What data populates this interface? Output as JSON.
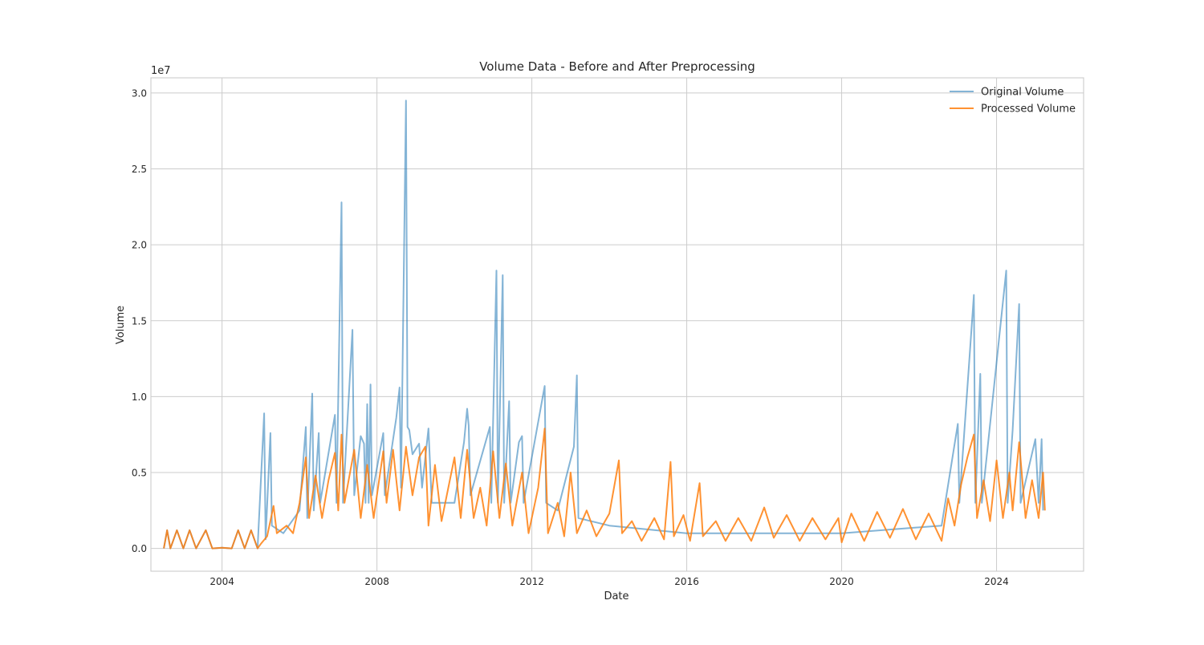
{
  "chart_data": {
    "type": "line",
    "title": "Volume Data - Before and After Preprocessing",
    "xlabel": "Date",
    "ylabel": "Volume",
    "y_multiplier_label": "1e7",
    "x_domain": [
      "2002-03-01",
      "2026-04-01"
    ],
    "ylim": [
      -1500000,
      31000000
    ],
    "x_ticks": [
      "2004",
      "2008",
      "2012",
      "2016",
      "2020",
      "2024"
    ],
    "y_ticks": [
      "0.0",
      "0.5",
      "1.0",
      "1.5",
      "2.0",
      "2.5",
      "3.0"
    ],
    "grid": true,
    "legend_position": "top-right",
    "colors": {
      "original": "#1f77b4",
      "processed": "#ff7f0e",
      "grid": "#cccccc",
      "spine": "#cccccc",
      "text": "#262626"
    },
    "series": [
      {
        "name": "Original Volume",
        "key": "original",
        "points": [
          [
            "2002-07-01",
            0
          ],
          [
            "2002-08-01",
            1200000
          ],
          [
            "2002-09-01",
            0
          ],
          [
            "2002-11-01",
            1200000
          ],
          [
            "2003-01-01",
            0
          ],
          [
            "2003-03-01",
            1200000
          ],
          [
            "2003-05-01",
            0
          ],
          [
            "2003-08-01",
            1200000
          ],
          [
            "2003-10-01",
            0
          ],
          [
            "2004-01-01",
            50000
          ],
          [
            "2004-04-01",
            0
          ],
          [
            "2004-06-01",
            1200000
          ],
          [
            "2004-08-01",
            0
          ],
          [
            "2004-10-01",
            1200000
          ],
          [
            "2004-12-01",
            0
          ],
          [
            "2005-02-01",
            8900000
          ],
          [
            "2005-02-15",
            600000
          ],
          [
            "2005-04-01",
            7600000
          ],
          [
            "2005-04-15",
            1500000
          ],
          [
            "2005-08-01",
            1000000
          ],
          [
            "2006-01-01",
            2500000
          ],
          [
            "2006-03-01",
            8000000
          ],
          [
            "2006-03-15",
            2000000
          ],
          [
            "2006-05-01",
            10200000
          ],
          [
            "2006-05-15",
            2500000
          ],
          [
            "2006-07-01",
            7600000
          ],
          [
            "2006-07-15",
            3000000
          ],
          [
            "2006-12-01",
            8800000
          ],
          [
            "2006-12-15",
            3000000
          ],
          [
            "2007-02-01",
            22800000
          ],
          [
            "2007-02-15",
            3000000
          ],
          [
            "2007-05-15",
            14400000
          ],
          [
            "2007-06-01",
            3500000
          ],
          [
            "2007-08-01",
            7400000
          ],
          [
            "2007-09-01",
            6900000
          ],
          [
            "2007-09-15",
            3000000
          ],
          [
            "2007-10-01",
            9500000
          ],
          [
            "2007-10-15",
            3000000
          ],
          [
            "2007-11-01",
            10800000
          ],
          [
            "2007-11-15",
            3500000
          ],
          [
            "2008-03-01",
            7600000
          ],
          [
            "2008-03-15",
            3500000
          ],
          [
            "2008-07-01",
            8600000
          ],
          [
            "2008-08-01",
            10600000
          ],
          [
            "2008-08-15",
            4000000
          ],
          [
            "2008-10-01",
            29500000
          ],
          [
            "2008-10-15",
            8000000
          ],
          [
            "2008-11-01",
            7800000
          ],
          [
            "2008-12-01",
            6200000
          ],
          [
            "2009-02-01",
            6900000
          ],
          [
            "2009-03-01",
            4000000
          ],
          [
            "2009-05-01",
            7900000
          ],
          [
            "2009-06-01",
            3000000
          ],
          [
            "2010-01-01",
            3000000
          ],
          [
            "2010-04-01",
            7000000
          ],
          [
            "2010-05-01",
            9200000
          ],
          [
            "2010-05-15",
            8100000
          ],
          [
            "2010-06-01",
            3500000
          ],
          [
            "2010-12-01",
            8000000
          ],
          [
            "2010-12-15",
            3000000
          ],
          [
            "2011-02-01",
            18300000
          ],
          [
            "2011-02-15",
            3000000
          ],
          [
            "2011-04-01",
            18000000
          ],
          [
            "2011-04-15",
            3000000
          ],
          [
            "2011-06-01",
            9700000
          ],
          [
            "2011-06-15",
            3000000
          ],
          [
            "2011-09-01",
            7000000
          ],
          [
            "2011-10-01",
            7400000
          ],
          [
            "2011-10-15",
            3000000
          ],
          [
            "2012-05-01",
            10700000
          ],
          [
            "2012-05-15",
            3000000
          ],
          [
            "2012-09-01",
            2500000
          ],
          [
            "2013-02-01",
            6700000
          ],
          [
            "2013-03-01",
            11400000
          ],
          [
            "2013-03-15",
            2000000
          ],
          [
            "2014-01-01",
            1500000
          ],
          [
            "2016-01-01",
            1000000
          ],
          [
            "2020-01-01",
            1000000
          ],
          [
            "2022-08-01",
            1500000
          ],
          [
            "2023-01-01",
            8200000
          ],
          [
            "2023-01-15",
            3000000
          ],
          [
            "2023-06-01",
            16700000
          ],
          [
            "2023-06-15",
            3000000
          ],
          [
            "2023-08-01",
            11500000
          ],
          [
            "2023-08-15",
            3000000
          ],
          [
            "2024-04-01",
            18300000
          ],
          [
            "2024-04-15",
            3000000
          ],
          [
            "2024-06-01",
            7800000
          ],
          [
            "2024-08-01",
            16100000
          ],
          [
            "2024-08-15",
            3000000
          ],
          [
            "2025-01-01",
            7200000
          ],
          [
            "2025-02-01",
            3000000
          ],
          [
            "2025-03-01",
            7200000
          ],
          [
            "2025-03-15",
            2500000
          ]
        ]
      },
      {
        "name": "Processed Volume",
        "key": "processed",
        "points": [
          [
            "2002-07-01",
            0
          ],
          [
            "2002-08-01",
            1200000
          ],
          [
            "2002-09-01",
            0
          ],
          [
            "2002-11-01",
            1200000
          ],
          [
            "2003-01-01",
            0
          ],
          [
            "2003-03-01",
            1200000
          ],
          [
            "2003-05-01",
            0
          ],
          [
            "2003-08-01",
            1200000
          ],
          [
            "2003-10-01",
            0
          ],
          [
            "2004-01-01",
            50000
          ],
          [
            "2004-04-01",
            0
          ],
          [
            "2004-06-01",
            1200000
          ],
          [
            "2004-08-01",
            0
          ],
          [
            "2004-10-01",
            1200000
          ],
          [
            "2004-12-01",
            0
          ],
          [
            "2005-01-01",
            300000
          ],
          [
            "2005-03-01",
            800000
          ],
          [
            "2005-05-01",
            2800000
          ],
          [
            "2005-06-01",
            1000000
          ],
          [
            "2005-09-01",
            1500000
          ],
          [
            "2005-11-01",
            1000000
          ],
          [
            "2006-01-01",
            3000000
          ],
          [
            "2006-03-01",
            6000000
          ],
          [
            "2006-04-01",
            2000000
          ],
          [
            "2006-06-01",
            4800000
          ],
          [
            "2006-08-01",
            2000000
          ],
          [
            "2006-10-01",
            4500000
          ],
          [
            "2006-12-01",
            6300000
          ],
          [
            "2007-01-01",
            2500000
          ],
          [
            "2007-02-01",
            7500000
          ],
          [
            "2007-03-01",
            3000000
          ],
          [
            "2007-06-01",
            6500000
          ],
          [
            "2007-08-01",
            2000000
          ],
          [
            "2007-10-01",
            5500000
          ],
          [
            "2007-12-01",
            2000000
          ],
          [
            "2008-03-01",
            6400000
          ],
          [
            "2008-04-01",
            3000000
          ],
          [
            "2008-06-01",
            6500000
          ],
          [
            "2008-08-01",
            2500000
          ],
          [
            "2008-10-01",
            6700000
          ],
          [
            "2008-12-01",
            3500000
          ],
          [
            "2009-02-01",
            6000000
          ],
          [
            "2009-04-01",
            6700000
          ],
          [
            "2009-05-01",
            1500000
          ],
          [
            "2009-07-01",
            5500000
          ],
          [
            "2009-09-01",
            1800000
          ],
          [
            "2010-01-01",
            6000000
          ],
          [
            "2010-03-01",
            2000000
          ],
          [
            "2010-05-01",
            6500000
          ],
          [
            "2010-07-01",
            2000000
          ],
          [
            "2010-09-01",
            4000000
          ],
          [
            "2010-11-01",
            1500000
          ],
          [
            "2011-01-01",
            6400000
          ],
          [
            "2011-03-01",
            2000000
          ],
          [
            "2011-05-01",
            5600000
          ],
          [
            "2011-07-01",
            1500000
          ],
          [
            "2011-10-01",
            5000000
          ],
          [
            "2011-12-01",
            1000000
          ],
          [
            "2012-03-01",
            4000000
          ],
          [
            "2012-05-01",
            7900000
          ],
          [
            "2012-06-01",
            1000000
          ],
          [
            "2012-09-01",
            3000000
          ],
          [
            "2012-11-01",
            800000
          ],
          [
            "2013-01-01",
            5000000
          ],
          [
            "2013-03-01",
            1000000
          ],
          [
            "2013-06-01",
            2500000
          ],
          [
            "2013-09-01",
            800000
          ],
          [
            "2014-01-01",
            2300000
          ],
          [
            "2014-04-01",
            5800000
          ],
          [
            "2014-05-01",
            1000000
          ],
          [
            "2014-08-01",
            1800000
          ],
          [
            "2014-11-01",
            500000
          ],
          [
            "2015-03-01",
            2000000
          ],
          [
            "2015-06-01",
            600000
          ],
          [
            "2015-08-01",
            5700000
          ],
          [
            "2015-09-01",
            800000
          ],
          [
            "2015-12-01",
            2200000
          ],
          [
            "2016-02-01",
            500000
          ],
          [
            "2016-05-01",
            4300000
          ],
          [
            "2016-06-01",
            800000
          ],
          [
            "2016-10-01",
            1800000
          ],
          [
            "2017-01-01",
            500000
          ],
          [
            "2017-05-01",
            2000000
          ],
          [
            "2017-09-01",
            500000
          ],
          [
            "2018-01-01",
            2700000
          ],
          [
            "2018-04-01",
            700000
          ],
          [
            "2018-08-01",
            2200000
          ],
          [
            "2018-12-01",
            500000
          ],
          [
            "2019-04-01",
            2000000
          ],
          [
            "2019-08-01",
            600000
          ],
          [
            "2019-12-01",
            2000000
          ],
          [
            "2020-01-01",
            400000
          ],
          [
            "2020-04-01",
            2300000
          ],
          [
            "2020-08-01",
            500000
          ],
          [
            "2020-12-01",
            2400000
          ],
          [
            "2021-04-01",
            700000
          ],
          [
            "2021-08-01",
            2600000
          ],
          [
            "2021-12-01",
            600000
          ],
          [
            "2022-04-01",
            2300000
          ],
          [
            "2022-08-01",
            500000
          ],
          [
            "2022-10-01",
            3300000
          ],
          [
            "2022-12-01",
            1500000
          ],
          [
            "2023-02-01",
            4200000
          ],
          [
            "2023-04-01",
            6000000
          ],
          [
            "2023-06-01",
            7500000
          ],
          [
            "2023-07-01",
            2000000
          ],
          [
            "2023-09-01",
            4500000
          ],
          [
            "2023-11-01",
            1800000
          ],
          [
            "2024-01-01",
            5800000
          ],
          [
            "2024-03-01",
            2000000
          ],
          [
            "2024-05-01",
            5000000
          ],
          [
            "2024-06-01",
            2500000
          ],
          [
            "2024-08-01",
            7000000
          ],
          [
            "2024-10-01",
            2000000
          ],
          [
            "2024-12-01",
            4500000
          ],
          [
            "2025-02-01",
            2000000
          ],
          [
            "2025-03-15",
            5000000
          ],
          [
            "2025-04-01",
            2500000
          ]
        ]
      }
    ]
  }
}
